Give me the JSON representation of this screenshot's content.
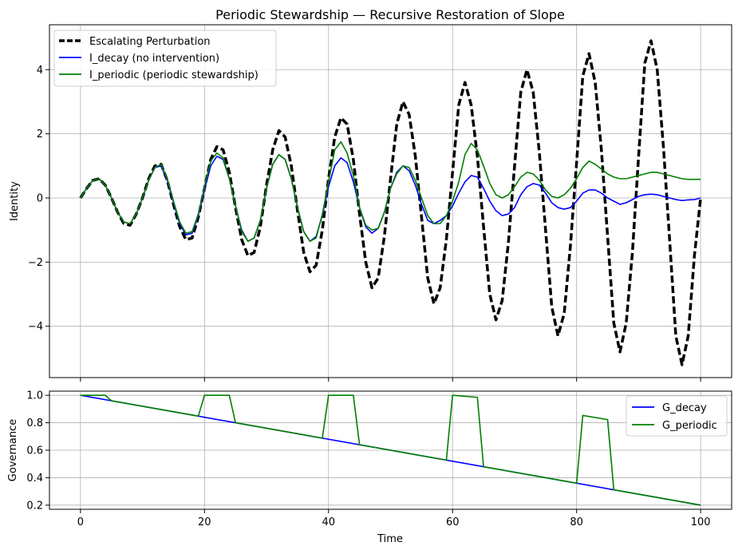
{
  "chart_data": [
    {
      "type": "line",
      "title": "Periodic Stewardship — Recursive Restoration of Slope",
      "xlabel": "",
      "ylabel": "Identity",
      "xlim": [
        -5,
        105
      ],
      "ylim": [
        -5.6,
        5.4
      ],
      "x_ticks": [
        0,
        20,
        40,
        60,
        80,
        100
      ],
      "y_ticks": [
        -4,
        -2,
        0,
        2,
        4
      ],
      "y_tick_labels": [
        "−4",
        "−2",
        "0",
        "2",
        "4"
      ],
      "grid": true,
      "legend_position": "upper left",
      "series": [
        {
          "name": "Escalating Perturbation",
          "color": "#000000",
          "style": "dashed",
          "x": [
            0,
            1,
            2,
            3,
            4,
            5,
            6,
            7,
            8,
            9,
            10,
            11,
            12,
            13,
            14,
            15,
            16,
            17,
            18,
            19,
            20,
            21,
            22,
            23,
            24,
            25,
            26,
            27,
            28,
            29,
            30,
            31,
            32,
            33,
            34,
            35,
            36,
            37,
            38,
            39,
            40,
            41,
            42,
            43,
            44,
            45,
            46,
            47,
            48,
            49,
            50,
            51,
            52,
            53,
            54,
            55,
            56,
            57,
            58,
            59,
            60,
            61,
            62,
            63,
            64,
            65,
            66,
            67,
            68,
            69,
            70,
            71,
            72,
            73,
            74,
            75,
            76,
            77,
            78,
            79,
            80,
            81,
            82,
            83,
            84,
            85,
            86,
            87,
            88,
            89,
            90,
            91,
            92,
            93,
            94,
            95,
            96,
            97,
            98,
            99,
            100
          ],
          "y": [
            0,
            0.3,
            0.55,
            0.6,
            0.4,
            0,
            -0.45,
            -0.8,
            -0.85,
            -0.5,
            0,
            0.6,
            1.0,
            1.05,
            0.55,
            -0.2,
            -0.9,
            -1.3,
            -1.25,
            -0.6,
            0.3,
            1.2,
            1.6,
            1.5,
            0.8,
            -0.3,
            -1.3,
            -1.8,
            -1.7,
            -0.9,
            0.4,
            1.5,
            2.1,
            1.9,
            1.0,
            -0.4,
            -1.7,
            -2.3,
            -2.1,
            -1.0,
            0.6,
            1.9,
            2.5,
            2.3,
            1.2,
            -0.5,
            -2.0,
            -2.8,
            -2.5,
            -1.2,
            0.6,
            2.3,
            3.0,
            2.6,
            1.3,
            -0.6,
            -2.5,
            -3.3,
            -2.8,
            -1.3,
            0.8,
            2.9,
            3.6,
            2.9,
            1.3,
            -0.9,
            -3.0,
            -3.8,
            -3.2,
            -1.4,
            1.0,
            3.3,
            4.0,
            3.3,
            1.4,
            -1.0,
            -3.4,
            -4.3,
            -3.6,
            -1.5,
            1.1,
            3.8,
            4.5,
            3.6,
            1.5,
            -1.2,
            -3.9,
            -4.8,
            -3.9,
            -1.7,
            1.3,
            4.2,
            4.9,
            4.0,
            1.6,
            -1.3,
            -4.3,
            -5.2,
            -4.3,
            -1.8,
            0
          ]
        },
        {
          "name": "I_decay (no intervention)",
          "color": "#0000ff",
          "style": "solid",
          "x": [
            0,
            1,
            2,
            3,
            4,
            5,
            6,
            7,
            8,
            9,
            10,
            11,
            12,
            13,
            14,
            15,
            16,
            17,
            18,
            19,
            20,
            21,
            22,
            23,
            24,
            25,
            26,
            27,
            28,
            29,
            30,
            31,
            32,
            33,
            34,
            35,
            36,
            37,
            38,
            39,
            40,
            41,
            42,
            43,
            44,
            45,
            46,
            47,
            48,
            49,
            50,
            51,
            52,
            53,
            54,
            55,
            56,
            57,
            58,
            59,
            60,
            61,
            62,
            63,
            64,
            65,
            66,
            67,
            68,
            69,
            70,
            71,
            72,
            73,
            74,
            75,
            76,
            77,
            78,
            79,
            80,
            81,
            82,
            83,
            84,
            85,
            86,
            87,
            88,
            89,
            90,
            91,
            92,
            93,
            94,
            95,
            96,
            97,
            98,
            99,
            100
          ],
          "y": [
            0,
            0.3,
            0.55,
            0.6,
            0.4,
            0,
            -0.45,
            -0.75,
            -0.8,
            -0.5,
            0,
            0.55,
            0.95,
            1.0,
            0.55,
            -0.15,
            -0.8,
            -1.15,
            -1.1,
            -0.55,
            0.25,
            1.0,
            1.3,
            1.2,
            0.6,
            -0.25,
            -1.0,
            -1.35,
            -1.25,
            -0.7,
            0.3,
            1.05,
            1.35,
            1.2,
            0.6,
            -0.3,
            -1.05,
            -1.35,
            -1.2,
            -0.55,
            0.35,
            1.0,
            1.25,
            1.1,
            0.5,
            -0.3,
            -0.9,
            -1.1,
            -0.95,
            -0.45,
            0.3,
            0.8,
            1.0,
            0.85,
            0.4,
            -0.2,
            -0.7,
            -0.8,
            -0.7,
            -0.55,
            -0.25,
            0.15,
            0.5,
            0.7,
            0.65,
            0.3,
            -0.1,
            -0.4,
            -0.55,
            -0.5,
            -0.3,
            0.1,
            0.35,
            0.45,
            0.4,
            0.15,
            -0.15,
            -0.3,
            -0.35,
            -0.3,
            -0.1,
            0.15,
            0.25,
            0.25,
            0.15,
            0,
            -0.1,
            -0.2,
            -0.15,
            -0.05,
            0.05,
            0.1,
            0.12,
            0.1,
            0.05,
            0,
            -0.05,
            -0.08,
            -0.06,
            -0.05,
            0
          ]
        },
        {
          "name": "I_periodic (periodic stewardship)",
          "color": "#008000",
          "style": "solid",
          "x": [
            0,
            1,
            2,
            3,
            4,
            5,
            6,
            7,
            8,
            9,
            10,
            11,
            12,
            13,
            14,
            15,
            16,
            17,
            18,
            19,
            20,
            21,
            22,
            23,
            24,
            25,
            26,
            27,
            28,
            29,
            30,
            31,
            32,
            33,
            34,
            35,
            36,
            37,
            38,
            39,
            40,
            41,
            42,
            43,
            44,
            45,
            46,
            47,
            48,
            49,
            50,
            51,
            52,
            53,
            54,
            55,
            56,
            57,
            58,
            59,
            60,
            61,
            62,
            63,
            64,
            65,
            66,
            67,
            68,
            69,
            70,
            71,
            72,
            73,
            74,
            75,
            76,
            77,
            78,
            79,
            80,
            81,
            82,
            83,
            84,
            85,
            86,
            87,
            88,
            89,
            90,
            91,
            92,
            93,
            94,
            95,
            96,
            97,
            98,
            99,
            100
          ],
          "y": [
            0,
            0.3,
            0.55,
            0.6,
            0.4,
            0,
            -0.45,
            -0.75,
            -0.8,
            -0.5,
            0,
            0.55,
            0.95,
            1.05,
            0.6,
            -0.1,
            -0.75,
            -1.1,
            -1.05,
            -0.5,
            0.35,
            1.15,
            1.4,
            1.25,
            0.6,
            -0.25,
            -1.05,
            -1.35,
            -1.25,
            -0.7,
            0.3,
            1.05,
            1.35,
            1.2,
            0.6,
            -0.3,
            -1.05,
            -1.35,
            -1.25,
            -0.5,
            0.5,
            1.5,
            1.75,
            1.4,
            0.7,
            -0.3,
            -0.85,
            -1.0,
            -0.95,
            -0.45,
            0.3,
            0.75,
            1.0,
            0.95,
            0.55,
            0,
            -0.55,
            -0.8,
            -0.8,
            -0.55,
            -0.1,
            0.5,
            1.35,
            1.7,
            1.5,
            1.0,
            0.45,
            0.1,
            0,
            0.1,
            0.35,
            0.65,
            0.8,
            0.75,
            0.55,
            0.25,
            0.05,
            0,
            0.1,
            0.3,
            0.6,
            0.95,
            1.15,
            1.05,
            0.9,
            0.75,
            0.65,
            0.6,
            0.6,
            0.65,
            0.7,
            0.75,
            0.8,
            0.8,
            0.75,
            0.7,
            0.65,
            0.6,
            0.58,
            0.58,
            0.58
          ]
        }
      ]
    },
    {
      "type": "line",
      "title": "",
      "xlabel": "Time",
      "ylabel": "Governance",
      "xlim": [
        -5,
        105
      ],
      "ylim": [
        0.17,
        1.03
      ],
      "x_ticks": [
        0,
        20,
        40,
        60,
        80,
        100
      ],
      "y_ticks": [
        0.2,
        0.4,
        0.6,
        0.8,
        1.0
      ],
      "y_tick_labels": [
        "0.2",
        "0.4",
        "0.6",
        "0.8",
        "1.0"
      ],
      "grid": true,
      "legend_position": "upper right",
      "series": [
        {
          "name": "G_decay",
          "color": "#0000ff",
          "style": "solid",
          "x": [
            0,
            100
          ],
          "y": [
            1.0,
            0.2
          ]
        },
        {
          "name": "G_periodic",
          "color": "#008000",
          "style": "solid",
          "x": [
            0,
            4,
            5,
            19,
            20,
            24,
            25,
            39,
            40,
            44,
            45,
            59,
            60,
            64,
            65,
            79,
            80,
            81,
            85,
            86,
            100
          ],
          "y": [
            1.0,
            1.0,
            0.96,
            0.848,
            1.0,
            1.0,
            0.8,
            0.688,
            1.0,
            1.0,
            0.64,
            0.528,
            1.0,
            0.985,
            0.48,
            0.368,
            0.36,
            0.853,
            0.823,
            0.312,
            0.2
          ]
        }
      ]
    }
  ]
}
